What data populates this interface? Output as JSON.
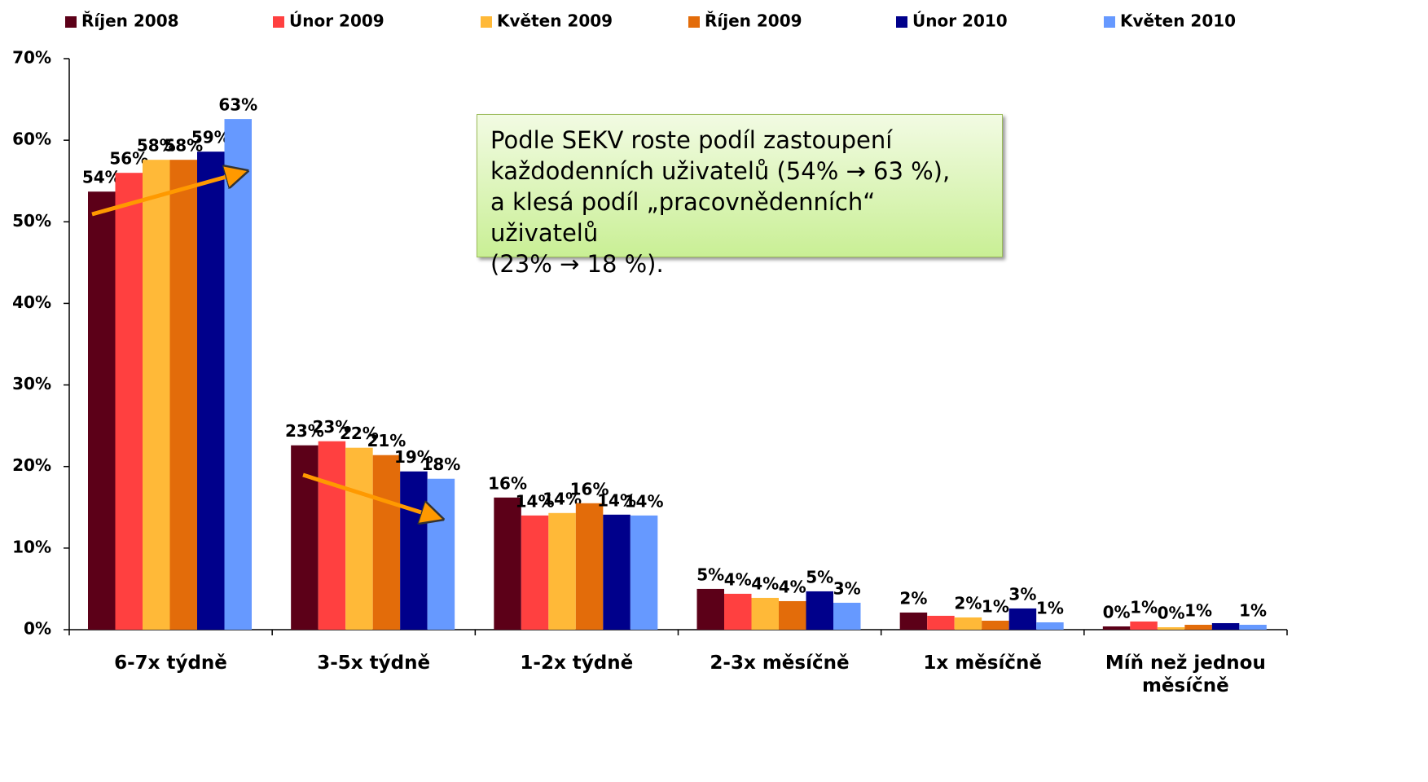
{
  "chart_data": {
    "type": "bar",
    "categories": [
      "6-7x týdně",
      "3-5x týdně",
      "1-2x týdně",
      "2-3x měsíčně",
      "1x měsíčně",
      "Míň než jednou měsíčně"
    ],
    "series": [
      {
        "name": "Říjen 2008",
        "color": "#5c0018",
        "values": [
          53.7,
          22.6,
          16.2,
          5.0,
          2.1,
          0.4
        ],
        "value_labels": [
          "54%",
          "23%",
          "16%",
          "5%",
          "2%",
          "0%"
        ]
      },
      {
        "name": "Únor 2009",
        "color": "#ff4040",
        "values": [
          56.0,
          23.1,
          14.0,
          4.4,
          1.7,
          1.0
        ],
        "value_labels": [
          "56%",
          "23%",
          "14%",
          "4%",
          null,
          "1%"
        ]
      },
      {
        "name": "Květen 2009",
        "color": "#ffb938",
        "values": [
          57.6,
          22.3,
          14.3,
          3.9,
          1.5,
          0.3
        ],
        "value_labels": [
          "58%",
          "22%",
          "14%",
          "4%",
          "2%",
          "0%"
        ]
      },
      {
        "name": "Říjen 2009",
        "color": "#e36c0a",
        "values": [
          57.6,
          21.4,
          15.5,
          3.5,
          1.1,
          0.6
        ],
        "value_labels": [
          "58%",
          "21%",
          "16%",
          "4%",
          "1%",
          "1%"
        ]
      },
      {
        "name": "Únor 2010",
        "color": "#00008b",
        "values": [
          58.6,
          19.4,
          14.1,
          4.7,
          2.6,
          0.8
        ],
        "value_labels": [
          "59%",
          "19%",
          "14%",
          "5%",
          "3%",
          null
        ]
      },
      {
        "name": "Květen 2010",
        "color": "#6699ff",
        "values": [
          62.6,
          18.5,
          14.0,
          3.3,
          0.9,
          0.6
        ],
        "value_labels": [
          "63%",
          "18%",
          "14%",
          "3%",
          "1%",
          "1%"
        ]
      }
    ],
    "ylim": [
      0,
      70
    ],
    "yticks": [
      {
        "value": 0,
        "label": "0%"
      },
      {
        "value": 10,
        "label": "10%"
      },
      {
        "value": 20,
        "label": "20%"
      },
      {
        "value": 30,
        "label": "30%"
      },
      {
        "value": 40,
        "label": "40%"
      },
      {
        "value": 50,
        "label": "50%"
      },
      {
        "value": 60,
        "label": "60%"
      },
      {
        "value": 70,
        "label": "70%"
      }
    ],
    "annotation": "Podle SEKV roste podíl zastoupení\nkaždodenních uživatelů (54% → 63 %),\na klesá podíl „pracovnědenních“ uživatelů\n(23% → 18 %)."
  }
}
